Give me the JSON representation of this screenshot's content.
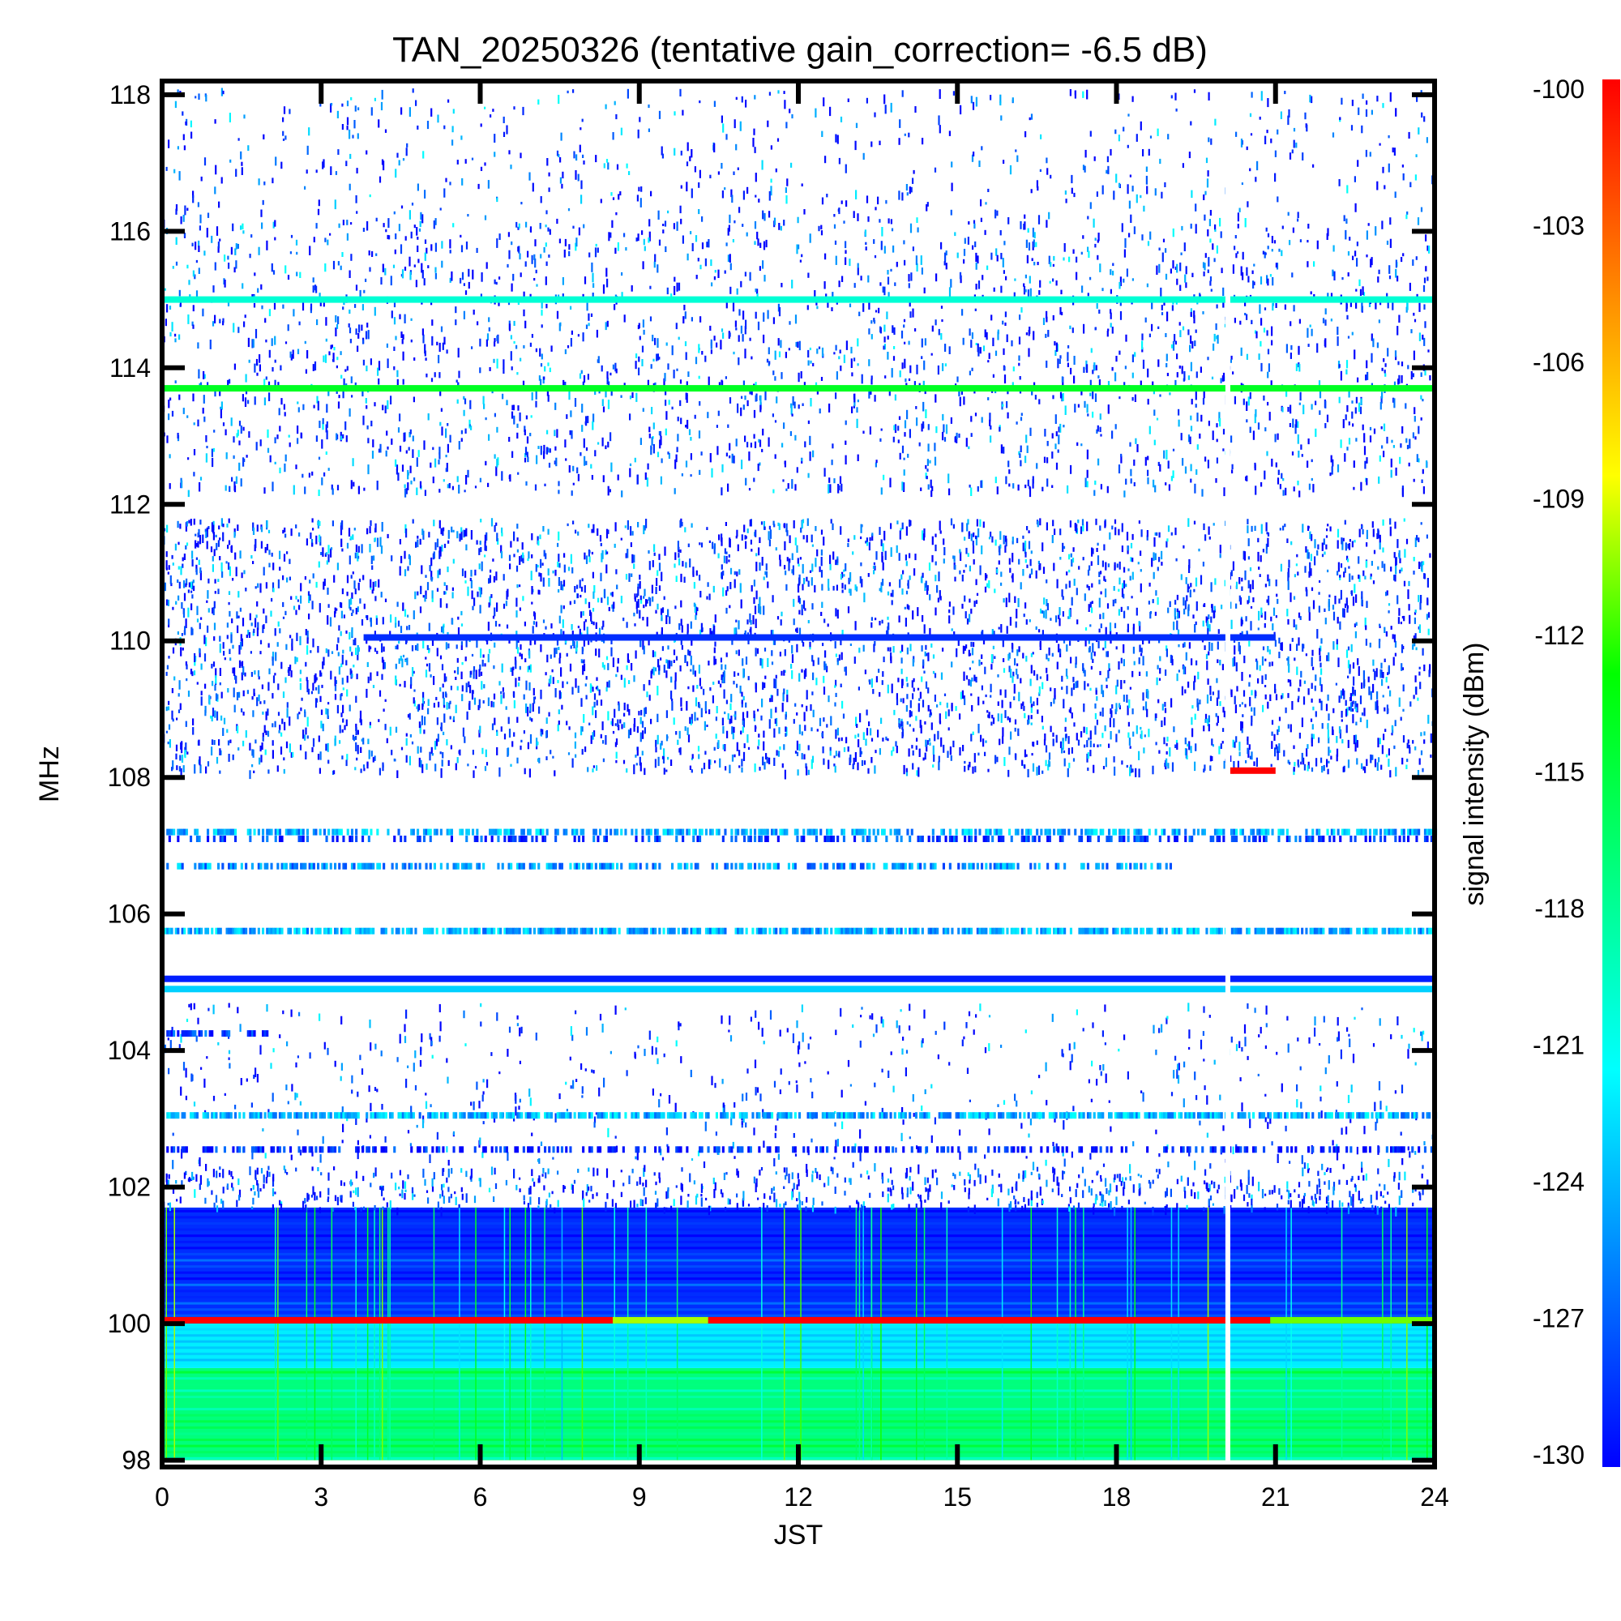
{
  "chart_data": {
    "type": "heatmap",
    "title": "TAN_20250326 (tentative gain_correction= -6.5 dB)",
    "xlabel": "JST",
    "ylabel": "MHz",
    "colorbar_label": "signal intensity (dBm)",
    "xlim": [
      0,
      24
    ],
    "ylim": [
      97.9,
      118.2
    ],
    "x_ticks": [
      0,
      3,
      6,
      9,
      12,
      15,
      18,
      21,
      24
    ],
    "x_tick_labels": [
      "0",
      "3",
      "6",
      "9",
      "12",
      "15",
      "18",
      "21",
      "24"
    ],
    "y_ticks": [
      98,
      100,
      102,
      104,
      106,
      108,
      110,
      112,
      114,
      116,
      118
    ],
    "y_tick_labels": [
      "98",
      "100",
      "102",
      "104",
      "106",
      "108",
      "110",
      "112",
      "114",
      "116",
      "118"
    ],
    "colorbar_range": [
      -130,
      -100
    ],
    "colorbar_ticks": [
      -100,
      -103,
      -106,
      -109,
      -112,
      -115,
      -118,
      -121,
      -124,
      -127,
      -130
    ],
    "colorbar_tick_labels": [
      "-100",
      "-103",
      "-106",
      "-109",
      "-112",
      "-115",
      "-118",
      "-121",
      "-124",
      "-127",
      "-130"
    ],
    "colormap": [
      "#0000ff",
      "#0080ff",
      "#00ffff",
      "#00ff80",
      "#00ff00",
      "#ffff00",
      "#ff8000",
      "#ff0000"
    ],
    "data_gap_jst": 20.1,
    "continuous_bands": [
      {
        "mhz": 115.0,
        "dbm": -120,
        "from": 0,
        "to": 24
      },
      {
        "mhz": 113.7,
        "dbm": -114,
        "from": 0,
        "to": 24
      },
      {
        "mhz": 110.05,
        "dbm": -128.5,
        "from": 3.8,
        "to": 21
      },
      {
        "mhz": 105.05,
        "dbm": -129,
        "from": 0,
        "to": 24
      },
      {
        "mhz": 104.9,
        "dbm": -123,
        "from": 0,
        "to": 24
      },
      {
        "mhz": 100.05,
        "dbm": -100,
        "from": 0,
        "to": 8.5
      },
      {
        "mhz": 100.05,
        "dbm": -110,
        "from": 8.5,
        "to": 10.3
      },
      {
        "mhz": 100.05,
        "dbm": -100,
        "from": 10.3,
        "to": 20.9
      },
      {
        "mhz": 100.05,
        "dbm": -111,
        "from": 20.9,
        "to": 24
      },
      {
        "mhz": 108.1,
        "dbm": -100,
        "from": 20.1,
        "to": 21.0
      }
    ],
    "intermittent_bands": [
      {
        "mhz": 107.2,
        "dbm": -124,
        "from": 0,
        "to": 24,
        "density": 0.55
      },
      {
        "mhz": 107.1,
        "dbm": -128,
        "from": 0,
        "to": 24,
        "density": 0.35
      },
      {
        "mhz": 106.7,
        "dbm": -125,
        "from": 0,
        "to": 19,
        "density": 0.5
      },
      {
        "mhz": 105.75,
        "dbm": -124,
        "from": 0,
        "to": 24,
        "density": 0.7
      },
      {
        "mhz": 103.05,
        "dbm": -124,
        "from": 0,
        "to": 24,
        "density": 0.75
      },
      {
        "mhz": 104.25,
        "dbm": -128,
        "from": 0,
        "to": 2,
        "density": 0.5
      },
      {
        "mhz": 102.55,
        "dbm": -129,
        "from": 0,
        "to": 24,
        "density": 0.4
      }
    ],
    "background_bands": [
      {
        "from_mhz": 98.0,
        "to_mhz": 99.35,
        "dbm": -117
      },
      {
        "from_mhz": 99.35,
        "to_mhz": 100.0,
        "dbm": -122
      },
      {
        "from_mhz": 100.0,
        "to_mhz": 101.7,
        "dbm": -128.5
      }
    ],
    "noise_regions": [
      {
        "from_mhz": 108.1,
        "to_mhz": 111.8,
        "density": 0.5
      },
      {
        "from_mhz": 112.2,
        "to_mhz": 116.2,
        "density": 0.28
      },
      {
        "from_mhz": 116.2,
        "to_mhz": 118.1,
        "density": 0.14
      },
      {
        "from_mhz": 101.7,
        "to_mhz": 102.3,
        "density": 0.55
      },
      {
        "from_mhz": 102.3,
        "to_mhz": 104.7,
        "density": 0.12
      }
    ]
  }
}
